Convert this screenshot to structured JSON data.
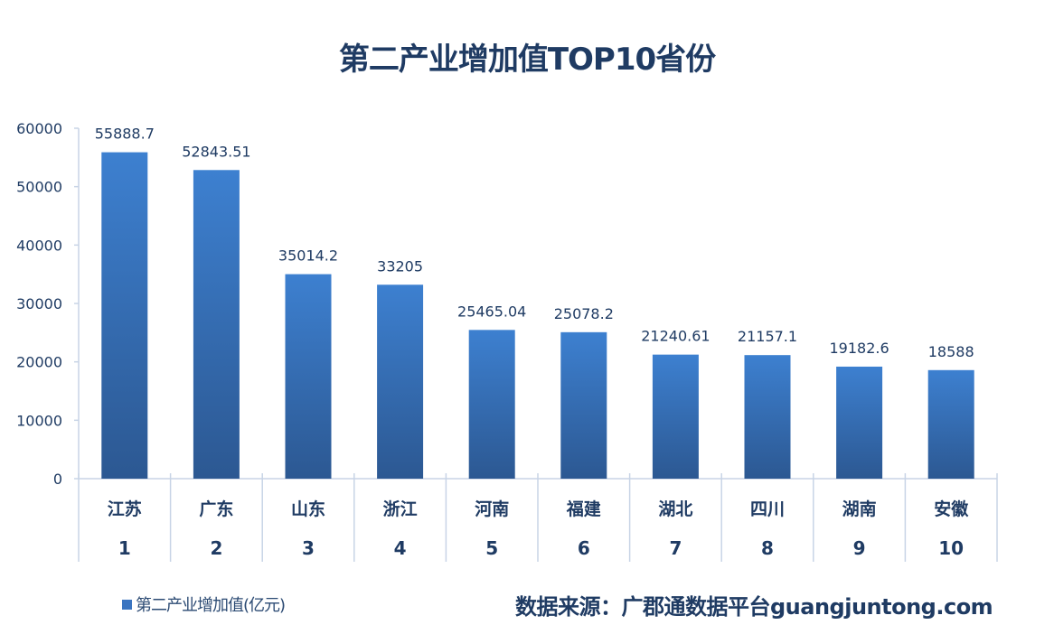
{
  "chart_data": {
    "type": "bar",
    "title": "第二产业增加值TOP10省份",
    "categories": [
      "江苏",
      "广东",
      "山东",
      "浙江",
      "河南",
      "福建",
      "湖北",
      "四川",
      "湖南",
      "安徽"
    ],
    "ranks": [
      "1",
      "2",
      "3",
      "4",
      "5",
      "6",
      "7",
      "8",
      "9",
      "10"
    ],
    "series": [
      {
        "name": "第二产业增加值(亿元)",
        "values": [
          55888.7,
          52843.51,
          35014.2,
          33205,
          25465.04,
          25078.2,
          21240.61,
          21157.1,
          19182.6,
          18588
        ]
      }
    ],
    "value_labels": [
      "55888.7",
      "52843.51",
      "35014.2",
      "33205",
      "25465.04",
      "25078.2",
      "21240.61",
      "21157.1",
      "19182.6",
      "18588"
    ],
    "xlabel": "",
    "ylabel": "",
    "ylim": [
      0,
      60000
    ],
    "yticks": [
      0,
      10000,
      20000,
      30000,
      40000,
      50000,
      60000
    ],
    "grid": false,
    "legend_position": "bottom-left",
    "colors": {
      "bar_top": "#3d80d0",
      "bar_bottom": "#2c5892",
      "text": "#1f3b63",
      "axis": "#c8d4e6"
    }
  },
  "source": "数据来源：广郡通数据平台guangjuntong.com"
}
